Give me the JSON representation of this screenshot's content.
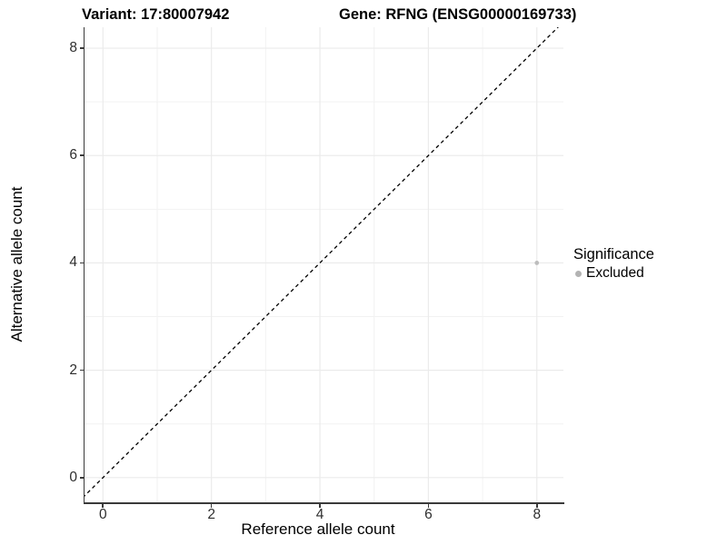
{
  "titles": {
    "variant": "Variant: 17:80007942",
    "gene": "Gene: RFNG (ENSG00000169733)"
  },
  "chart_data": {
    "type": "scatter",
    "title_left": "Variant: 17:80007942",
    "title_right": "Gene: RFNG (ENSG00000169733)",
    "xlabel": "Reference allele count",
    "ylabel": "Alternative allele count",
    "xlim": [
      -0.34,
      8.49
    ],
    "ylim": [
      -0.46,
      8.39
    ],
    "xticks": [
      0,
      2,
      4,
      6,
      8
    ],
    "yticks": [
      0,
      2,
      4,
      6,
      8
    ],
    "minor_grid_x": [
      1,
      3,
      5,
      7
    ],
    "minor_grid_y": [
      1,
      3,
      5,
      7
    ],
    "grid": true,
    "identity_line": {
      "slope": 1,
      "intercept": 0,
      "style": "dashed",
      "color": "#000000"
    },
    "series": [
      {
        "name": "Excluded",
        "color": "#bdbdbd",
        "points": [
          {
            "x": 8,
            "y": 4
          }
        ]
      }
    ],
    "legend": {
      "title": "Significance",
      "position": "right",
      "items": [
        {
          "label": "Excluded",
          "color": "#b3b3b3"
        }
      ]
    }
  },
  "colors": {
    "background": "#ffffff",
    "grid_major": "#ebebeb",
    "grid_minor": "#f2f2f2",
    "axis_line": "#3a3a3a",
    "tick_text": "#2e2e2e",
    "point": "#bdbdbd"
  }
}
